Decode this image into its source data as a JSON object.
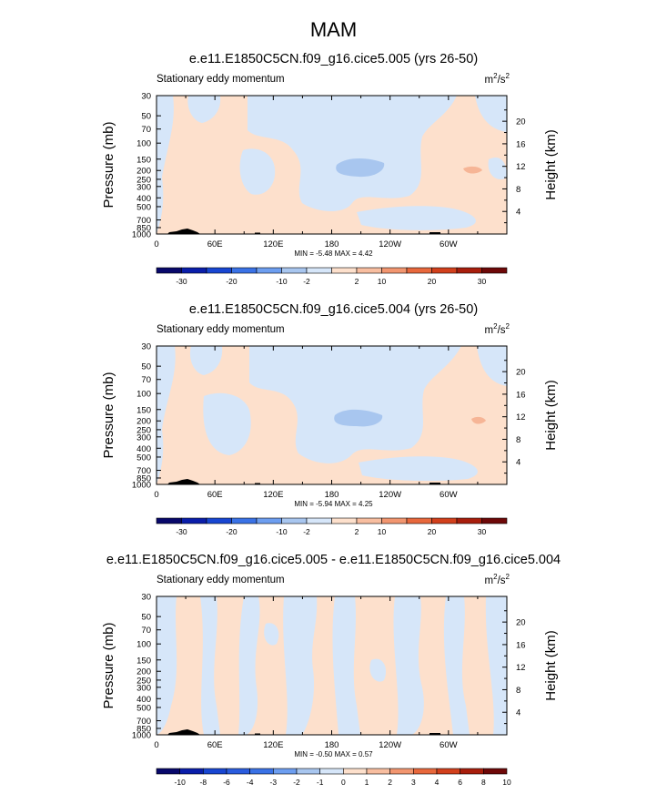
{
  "title": "MAM",
  "colors": {
    "pos_light": "#fde0cc",
    "neg_light": "#d6e6f9",
    "neg_mid": "#a8c6ef",
    "pos_mid": "#f6b596",
    "terrain": "#000000"
  },
  "panels": [
    {
      "title": "e.e11.E1850C5CN.f09_g16.cice5.005 (yrs 26-50)",
      "subtitle": "Stationary eddy momentum",
      "units_base": "m",
      "units_sup1": "2",
      "units_mid": "/s",
      "units_sup2": "2",
      "minmax": "MIN =  -5.48   MAX =   4.42",
      "labelbar": {
        "colors": [
          "#08086b",
          "#0a1eaa",
          "#1846d2",
          "#3a72e6",
          "#6d9ef0",
          "#a8c6ef",
          "#d6e6f9",
          "#fde0cc",
          "#f8bea0",
          "#f29670",
          "#e8683c",
          "#d2401c",
          "#a81e0c",
          "#6e0808"
        ],
        "labels": [
          "-30",
          "-20",
          "-10",
          "-2",
          "2",
          "10",
          "20",
          "30"
        ]
      }
    },
    {
      "title": "e.e11.E1850C5CN.f09_g16.cice5.004 (yrs 26-50)",
      "subtitle": "Stationary eddy momentum",
      "units_base": "m",
      "units_sup1": "2",
      "units_mid": "/s",
      "units_sup2": "2",
      "minmax": "MIN =  -5.94   MAX =   4.25",
      "labelbar": {
        "colors": [
          "#08086b",
          "#0a1eaa",
          "#1846d2",
          "#3a72e6",
          "#6d9ef0",
          "#a8c6ef",
          "#d6e6f9",
          "#fde0cc",
          "#f8bea0",
          "#f29670",
          "#e8683c",
          "#d2401c",
          "#a81e0c",
          "#6e0808"
        ],
        "labels": [
          "-30",
          "-20",
          "-10",
          "-2",
          "2",
          "10",
          "20",
          "30"
        ]
      }
    },
    {
      "title": "e.e11.E1850C5CN.f09_g16.cice5.005 - e.e11.E1850C5CN.f09_g16.cice5.004",
      "subtitle": "Stationary eddy momentum",
      "units_base": "m",
      "units_sup1": "2",
      "units_mid": "/s",
      "units_sup2": "2",
      "minmax": "MIN =  -0.50   MAX =   0.57",
      "labelbar": {
        "colors": [
          "#08086b",
          "#0a1eaa",
          "#1846d2",
          "#2a5cde",
          "#3a72e6",
          "#6d9ef0",
          "#a8c6ef",
          "#d6e6f9",
          "#fde0cc",
          "#f8bea0",
          "#f29670",
          "#e8683c",
          "#d2401c",
          "#a81e0c",
          "#6e0808"
        ],
        "labels": [
          "-10",
          "-8",
          "-6",
          "-4",
          "-3",
          "-2",
          "-1",
          "0",
          "1",
          "2",
          "3",
          "4",
          "6",
          "8",
          "10"
        ]
      }
    }
  ],
  "chart_data": {
    "type": "heatmap",
    "title": "MAM",
    "xlabel": "",
    "ylabel": "Pressure (mb)",
    "ylabel_right": "Height (km)",
    "x_ticks": [
      "0",
      "60E",
      "120E",
      "180",
      "120W",
      "60W"
    ],
    "x_tick_values": [
      0,
      60,
      120,
      180,
      240,
      300
    ],
    "xlim": [
      0,
      360
    ],
    "y_ticks": [
      "30",
      "50",
      "70",
      "100",
      "150",
      "200",
      "250",
      "300",
      "400",
      "500",
      "700",
      "850",
      "1000"
    ],
    "y_tick_values": [
      30,
      50,
      70,
      100,
      150,
      200,
      250,
      300,
      400,
      500,
      700,
      850,
      1000
    ],
    "ylim": [
      1000,
      30
    ],
    "y_scale": "log",
    "y2_ticks": [
      "4",
      "8",
      "12",
      "16",
      "20"
    ],
    "y2_tick_values": [
      4,
      8,
      12,
      16,
      20
    ],
    "panels": [
      {
        "name": "e.e11.E1850C5CN.f09_g16.cice5.005 (yrs 26-50)",
        "min": -5.48,
        "max": 4.42,
        "levels": [
          -30,
          -20,
          -10,
          -2,
          2,
          10,
          20,
          30
        ]
      },
      {
        "name": "e.e11.E1850C5CN.f09_g16.cice5.004 (yrs 26-50)",
        "min": -5.94,
        "max": 4.25,
        "levels": [
          -30,
          -20,
          -10,
          -2,
          2,
          10,
          20,
          30
        ]
      },
      {
        "name": "e.e11.E1850C5CN.f09_g16.cice5.005 - e.e11.E1850C5CN.f09_g16.cice5.004",
        "min": -0.5,
        "max": 0.57,
        "levels": [
          -10,
          -8,
          -6,
          -4,
          -3,
          -2,
          -1,
          0,
          1,
          2,
          3,
          4,
          6,
          8,
          10
        ]
      }
    ]
  }
}
